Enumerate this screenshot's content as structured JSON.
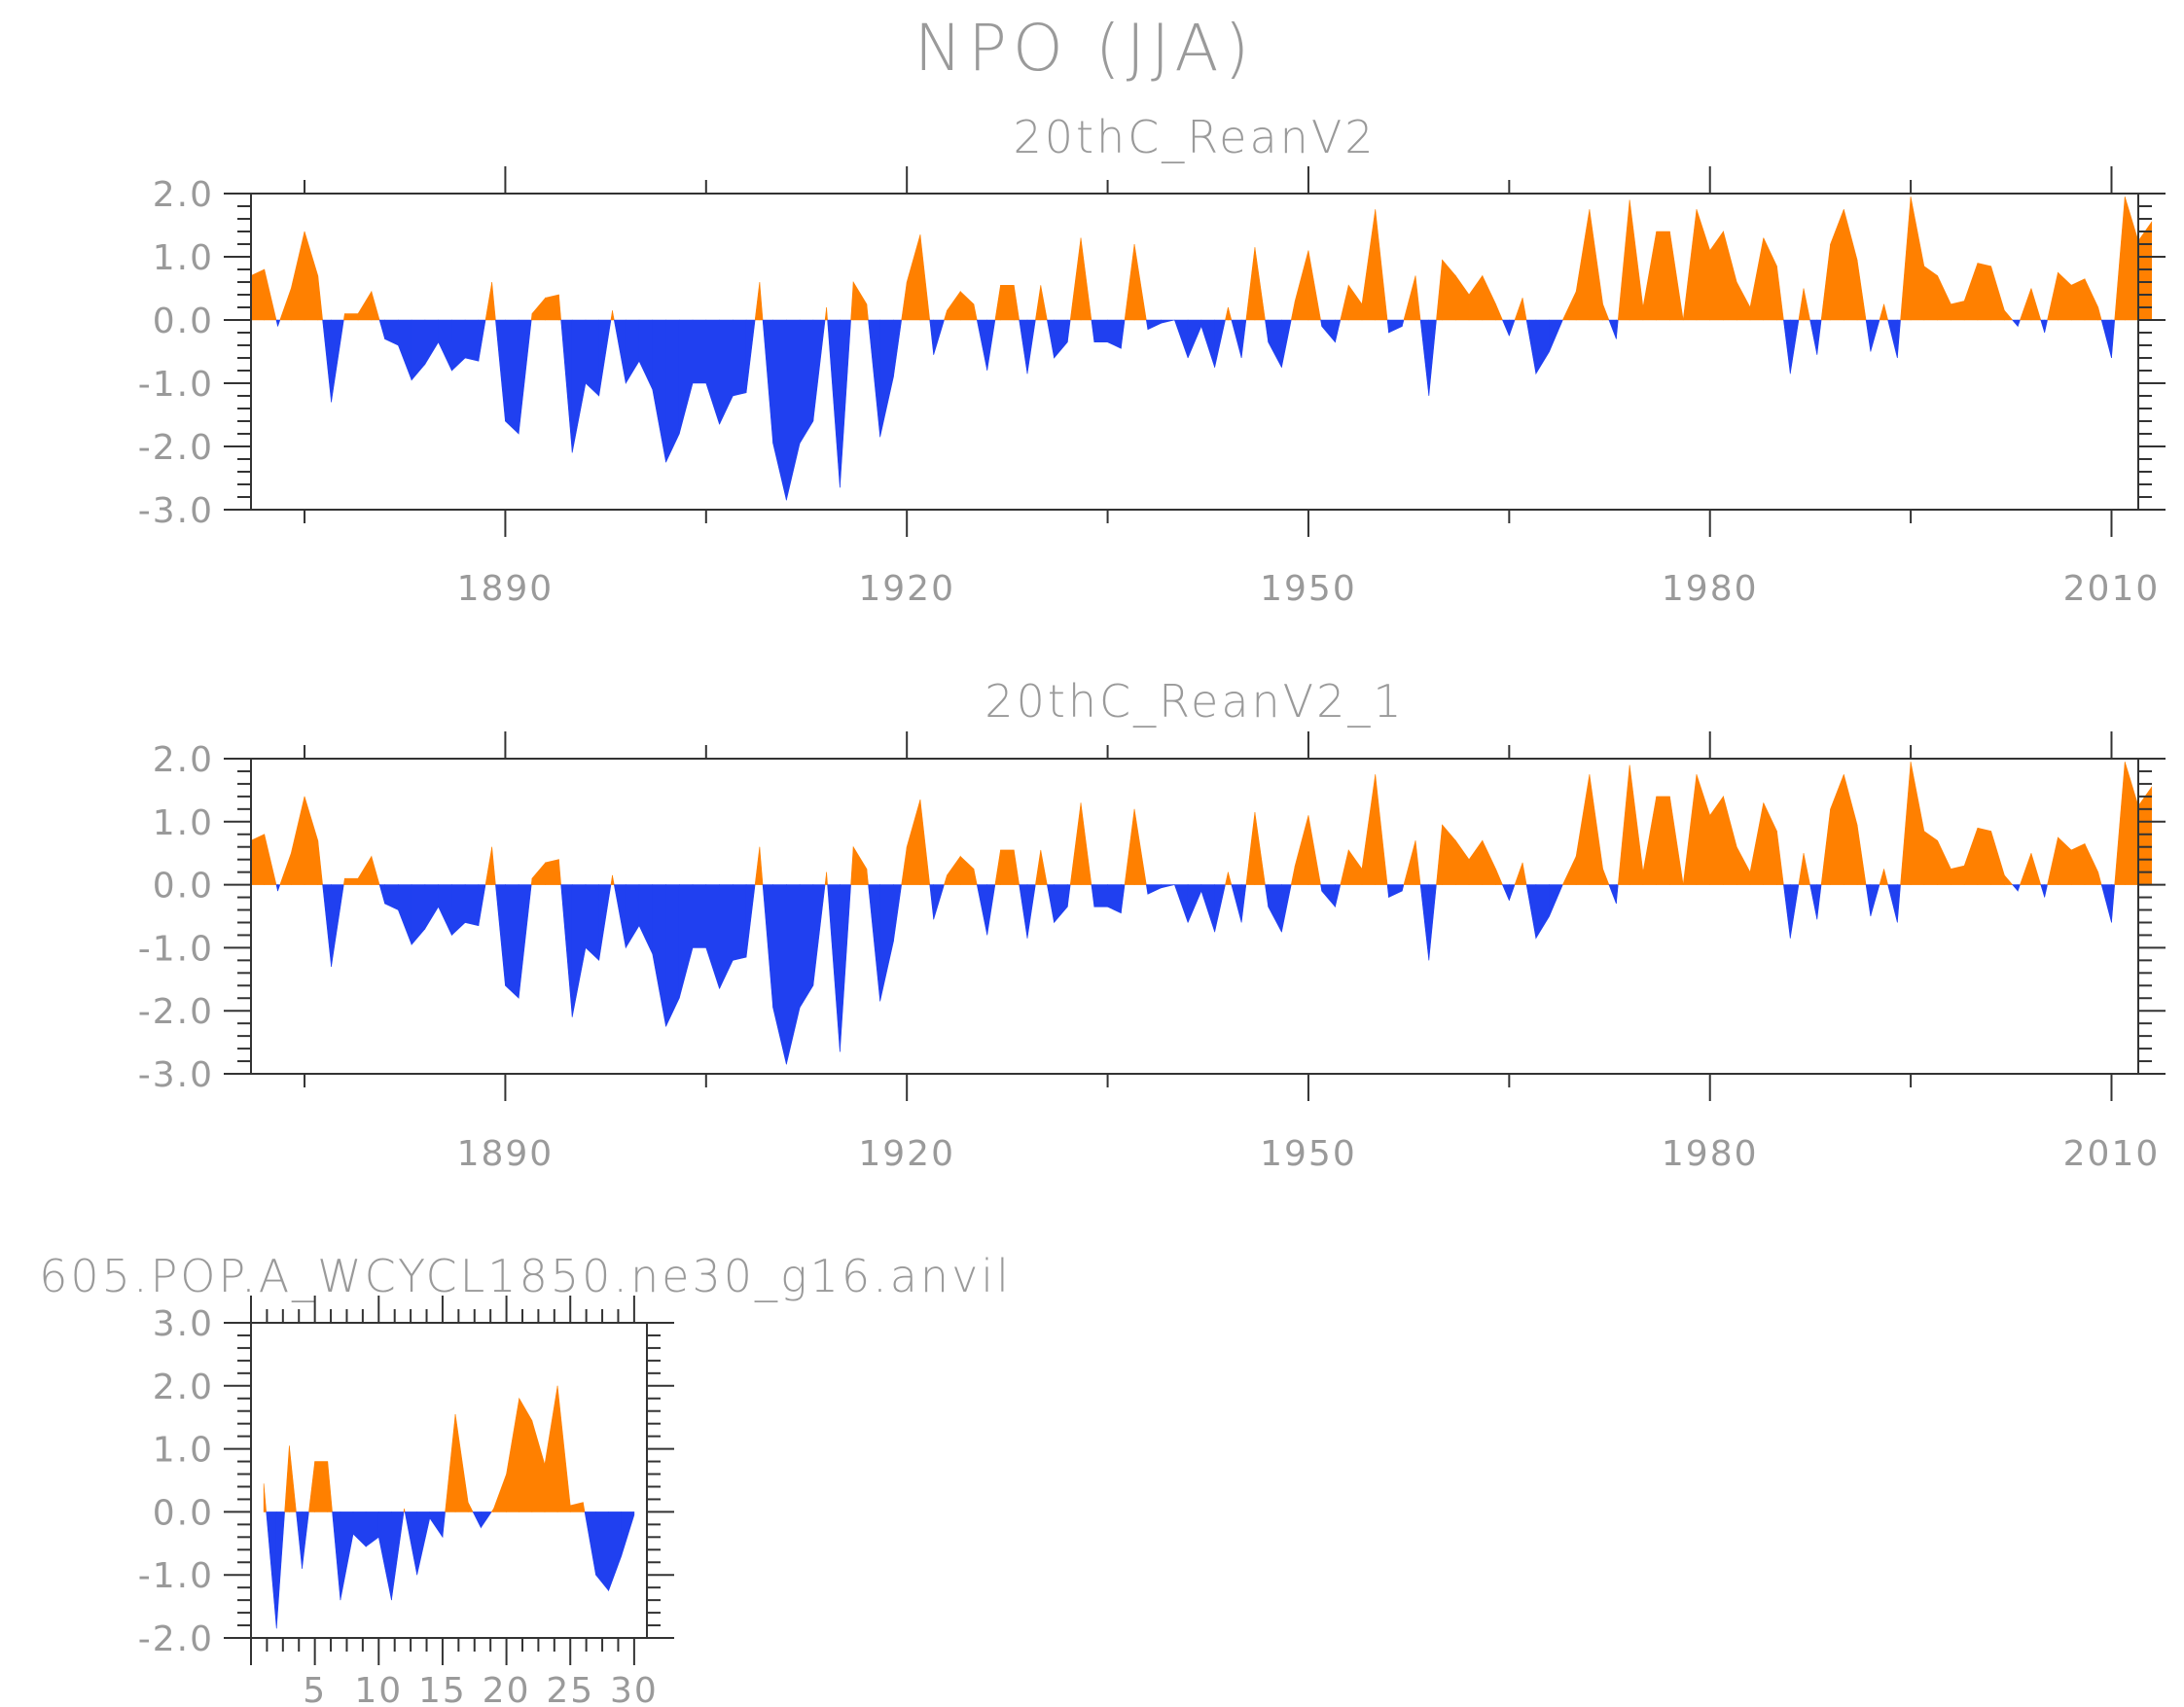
{
  "main_title": "NPO (JJA)",
  "colors": {
    "positive": "#ff8000",
    "negative": "#2040f0",
    "text": "#9a9a9a",
    "axis": "#333333"
  },
  "chart_data": [
    {
      "type": "area",
      "title": "20thC_ReanV2",
      "xlabel": "",
      "ylabel": "",
      "xlim": [
        1871,
        2012
      ],
      "ylim": [
        -3.0,
        2.0
      ],
      "yticks": [
        "2.0",
        "1.0",
        "0.0",
        "-1.0",
        "-2.0",
        "-3.0"
      ],
      "ytick_values": [
        2,
        1,
        0,
        -1,
        -2,
        -3
      ],
      "xticks": [
        "1890",
        "1920",
        "1950",
        "1980",
        "2010"
      ],
      "xtick_values": [
        1890,
        1920,
        1950,
        1980,
        2010
      ],
      "x_start": 1871,
      "values": [
        0.7,
        0.8,
        -0.1,
        0.5,
        1.4,
        0.7,
        -1.3,
        0.1,
        0.1,
        0.45,
        -0.3,
        -0.4,
        -0.95,
        -0.7,
        -0.35,
        -0.8,
        -0.6,
        -0.65,
        0.6,
        -1.6,
        -1.8,
        0.1,
        0.35,
        0.4,
        -2.1,
        -1.0,
        -1.2,
        0.15,
        -1.0,
        -0.65,
        -1.1,
        -2.25,
        -1.8,
        -1.0,
        -1.0,
        -1.65,
        -1.2,
        -1.15,
        0.6,
        -1.95,
        -2.85,
        -1.95,
        -1.6,
        0.2,
        -2.65,
        0.6,
        0.25,
        -1.85,
        -0.9,
        0.6,
        1.35,
        -0.55,
        0.15,
        0.45,
        0.25,
        -0.8,
        0.55,
        0.55,
        -0.85,
        0.55,
        -0.6,
        -0.35,
        1.3,
        -0.35,
        -0.35,
        -0.45,
        1.2,
        -0.15,
        -0.05,
        0.0,
        -0.6,
        -0.1,
        -0.75,
        0.2,
        -0.6,
        1.15,
        -0.35,
        -0.75,
        0.3,
        1.1,
        -0.1,
        -0.35,
        0.55,
        0.25,
        1.75,
        -0.2,
        -0.1,
        0.7,
        -1.2,
        0.95,
        0.7,
        0.4,
        0.7,
        0.25,
        -0.25,
        0.35,
        -0.85,
        -0.5,
        0.0,
        0.45,
        1.75,
        0.25,
        -0.3,
        1.9,
        0.2,
        1.4,
        1.4,
        0.0,
        1.75,
        1.1,
        1.4,
        0.6,
        0.2,
        1.3,
        0.85,
        -0.85,
        0.5,
        -0.55,
        1.2,
        1.75,
        0.95,
        -0.5,
        0.25,
        -0.6,
        1.95,
        0.85,
        0.7,
        0.25,
        0.3,
        0.9,
        0.85,
        0.15,
        -0.1,
        0.5,
        -0.2,
        0.75,
        0.55,
        0.65,
        0.2,
        -0.6,
        1.95,
        1.25,
        1.55
      ]
    },
    {
      "type": "area",
      "title": "20thC_ReanV2_1",
      "xlabel": "",
      "ylabel": "",
      "xlim": [
        1871,
        2012
      ],
      "ylim": [
        -3.0,
        2.0
      ],
      "yticks": [
        "2.0",
        "1.0",
        "0.0",
        "-1.0",
        "-2.0",
        "-3.0"
      ],
      "ytick_values": [
        2,
        1,
        0,
        -1,
        -2,
        -3
      ],
      "xticks": [
        "1890",
        "1920",
        "1950",
        "1980",
        "2010"
      ],
      "xtick_values": [
        1890,
        1920,
        1950,
        1980,
        2010
      ],
      "x_start": 1871,
      "values": [
        0.7,
        0.8,
        -0.1,
        0.5,
        1.4,
        0.7,
        -1.3,
        0.1,
        0.1,
        0.45,
        -0.3,
        -0.4,
        -0.95,
        -0.7,
        -0.35,
        -0.8,
        -0.6,
        -0.65,
        0.6,
        -1.6,
        -1.8,
        0.1,
        0.35,
        0.4,
        -2.1,
        -1.0,
        -1.2,
        0.15,
        -1.0,
        -0.65,
        -1.1,
        -2.25,
        -1.8,
        -1.0,
        -1.0,
        -1.65,
        -1.2,
        -1.15,
        0.6,
        -1.95,
        -2.85,
        -1.95,
        -1.6,
        0.2,
        -2.65,
        0.6,
        0.25,
        -1.85,
        -0.9,
        0.6,
        1.35,
        -0.55,
        0.15,
        0.45,
        0.25,
        -0.8,
        0.55,
        0.55,
        -0.85,
        0.55,
        -0.6,
        -0.35,
        1.3,
        -0.35,
        -0.35,
        -0.45,
        1.2,
        -0.15,
        -0.05,
        0.0,
        -0.6,
        -0.1,
        -0.75,
        0.2,
        -0.6,
        1.15,
        -0.35,
        -0.75,
        0.3,
        1.1,
        -0.1,
        -0.35,
        0.55,
        0.25,
        1.75,
        -0.2,
        -0.1,
        0.7,
        -1.2,
        0.95,
        0.7,
        0.4,
        0.7,
        0.25,
        -0.25,
        0.35,
        -0.85,
        -0.5,
        0.0,
        0.45,
        1.75,
        0.25,
        -0.3,
        1.9,
        0.2,
        1.4,
        1.4,
        0.0,
        1.75,
        1.1,
        1.4,
        0.6,
        0.2,
        1.3,
        0.85,
        -0.85,
        0.5,
        -0.55,
        1.2,
        1.75,
        0.95,
        -0.5,
        0.25,
        -0.6,
        1.95,
        0.85,
        0.7,
        0.25,
        0.3,
        0.9,
        0.85,
        0.15,
        -0.1,
        0.5,
        -0.2,
        0.75,
        0.55,
        0.65,
        0.2,
        -0.6,
        1.95,
        1.25,
        1.55
      ]
    },
    {
      "type": "area",
      "title": "605.POP.A_WCYCL1850.ne30_g16.anvil",
      "xlabel": "",
      "ylabel": "",
      "xlim": [
        0,
        31
      ],
      "ylim": [
        -2.0,
        3.0
      ],
      "yticks": [
        "3.0",
        "2.0",
        "1.0",
        "0.0",
        "-1.0",
        "-2.0"
      ],
      "ytick_values": [
        3,
        2,
        1,
        0,
        -1,
        -2
      ],
      "xticks": [
        "5",
        "10",
        "15",
        "20",
        "25",
        "30"
      ],
      "xtick_values": [
        5,
        10,
        15,
        20,
        25,
        30
      ],
      "x_start": 1,
      "values": [
        0.45,
        -1.85,
        1.05,
        -0.9,
        0.8,
        0.8,
        -1.4,
        -0.35,
        -0.55,
        -0.4,
        -1.4,
        0.05,
        -1.0,
        -0.1,
        -0.4,
        1.55,
        0.15,
        -0.25,
        0.05,
        0.6,
        1.8,
        1.45,
        0.75,
        2.0,
        0.1,
        0.15,
        -1.0,
        -1.25,
        -0.7,
        -0.05
      ]
    }
  ]
}
